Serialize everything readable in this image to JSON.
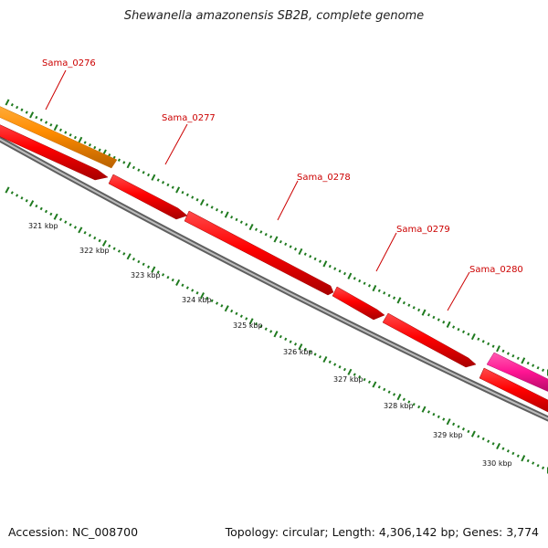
{
  "title": "Shewanella amazonensis SB2B, complete genome",
  "footer": {
    "accession": "Accession: NC_008700",
    "summary": "Topology: circular; Length: 4,306,142 bp; Genes: 3,774"
  },
  "colors": {
    "gene_red": "#ff0000",
    "gene_orange": "#ff8c00",
    "gene_pink": "#ff1493",
    "label_red": "#cc0000",
    "backbone_gray": "#8a8a8a",
    "tick_green": "#1f7a1f"
  },
  "genes": [
    {
      "name": "Sama_0276",
      "color": "orange",
      "labeled": true
    },
    {
      "name": "",
      "color": "red",
      "labeled": false
    },
    {
      "name": "Sama_0277",
      "color": "red",
      "labeled": true
    },
    {
      "name": "Sama_0278",
      "color": "red",
      "labeled": true
    },
    {
      "name": "Sama_0279",
      "color": "red",
      "labeled": true
    },
    {
      "name": "Sama_0280",
      "color": "red",
      "labeled": true
    },
    {
      "name": "",
      "color": "pink",
      "labeled": false
    },
    {
      "name": "",
      "color": "red",
      "labeled": false
    }
  ],
  "scale_labels": [
    "321 kbp",
    "322 kbp",
    "323 kbp",
    "324 kbp",
    "325 kbp",
    "326 kbp",
    "327 kbp",
    "328 kbp",
    "329 kbp",
    "330 kbp"
  ]
}
